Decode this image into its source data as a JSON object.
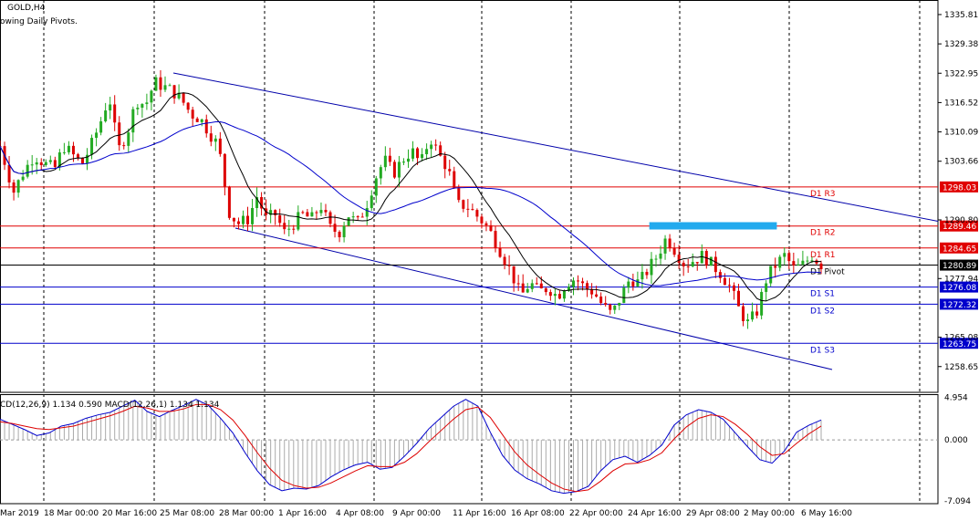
{
  "window": {
    "symbol_title": "GOLD,H4",
    "indicator_note": "owing Daily Pivots.",
    "macd_label": "CD(12,26,9) 1.134 0.590 MACD(12,26,1) 1.134 1.134"
  },
  "colors": {
    "resistance": "#e00000",
    "support": "#0000cc",
    "pivot": "#000000",
    "bull": "#22aa22",
    "bear": "#dd0000",
    "ma_fast": "#000000",
    "ma_slow": "#0000cc",
    "channel": "#0000aa",
    "highlight": "#22aaee",
    "macd_main": "#0000cc",
    "macd_signal": "#dd0000",
    "histogram": "#aaaaaa"
  },
  "chart_data": [
    {
      "type": "candlestick",
      "symbol": "GOLD",
      "timeframe": "H4",
      "ylim": [
        1253.0,
        1339.0
      ],
      "price_ticks": [
        "1335.81",
        "1329.38",
        "1322.95",
        "1316.52",
        "1310.09",
        "1303.66",
        "1290.80",
        "1277.94",
        "1265.08",
        "1258.65"
      ],
      "time_labels": [
        "Mar 2019",
        "18 Mar 00:00",
        "20 Mar 16:00",
        "25 Mar 08:00",
        "28 Mar 00:00",
        "1 Apr 16:00",
        "4 Apr 08:00",
        "9 Apr 00:00",
        "11 Apr 16:00",
        "16 Apr 08:00",
        "22 Apr 00:00",
        "24 Apr 16:00",
        "29 Apr 08:00",
        "2 May 00:00",
        "6 May 16:00"
      ],
      "levels": [
        {
          "name": "D1 R3",
          "value": 1298.03,
          "kind": "resistance",
          "tag": "1298.03"
        },
        {
          "name": "D1 R2",
          "value": 1289.46,
          "kind": "resistance",
          "tag": "1289.46"
        },
        {
          "name": "D1 R1",
          "value": 1284.65,
          "kind": "resistance",
          "tag": "1284.65"
        },
        {
          "name": "D1 Pivot",
          "value": 1280.89,
          "kind": "pivot",
          "tag": "1280.89"
        },
        {
          "name": "D1 S1",
          "value": 1276.08,
          "kind": "support",
          "tag": "1276.08"
        },
        {
          "name": "D1 S2",
          "value": 1272.32,
          "kind": "support",
          "tag": "1272.32"
        },
        {
          "name": "D1 S3",
          "value": 1263.75,
          "kind": "support",
          "tag": "1263.75"
        }
      ],
      "close_path": [
        [
          1307,
          0
        ],
        [
          1302,
          6
        ],
        [
          1297,
          12
        ],
        [
          1301,
          20
        ],
        [
          1305,
          30
        ],
        [
          1303,
          40
        ],
        [
          1302,
          48
        ],
        [
          1307,
          56
        ],
        [
          1305,
          64
        ],
        [
          1303,
          72
        ],
        [
          1307,
          80
        ],
        [
          1312,
          88
        ],
        [
          1318,
          96
        ],
        [
          1306,
          104
        ],
        [
          1310,
          112
        ],
        [
          1317,
          120
        ],
        [
          1316,
          128
        ],
        [
          1321,
          136
        ],
        [
          1320,
          144
        ],
        [
          1319,
          152
        ],
        [
          1317,
          160
        ],
        [
          1314,
          168
        ],
        [
          1313,
          176
        ],
        [
          1310,
          184
        ],
        [
          1307,
          192
        ],
        [
          1292,
          202
        ],
        [
          1290,
          210
        ],
        [
          1291,
          218
        ],
        [
          1296,
          226
        ],
        [
          1291,
          234
        ],
        [
          1292,
          242
        ],
        [
          1288,
          250
        ],
        [
          1290,
          258
        ],
        [
          1292,
          266
        ],
        [
          1291,
          274
        ],
        [
          1294,
          282
        ],
        [
          1289,
          290
        ],
        [
          1288,
          298
        ],
        [
          1292,
          306
        ],
        [
          1290,
          314
        ],
        [
          1294,
          322
        ],
        [
          1300,
          330
        ],
        [
          1304,
          338
        ],
        [
          1301,
          346
        ],
        [
          1304,
          354
        ],
        [
          1306,
          362
        ],
        [
          1303,
          370
        ],
        [
          1309,
          378
        ],
        [
          1305,
          386
        ],
        [
          1302,
          394
        ],
        [
          1294,
          402
        ],
        [
          1294,
          410
        ],
        [
          1292,
          418
        ],
        [
          1290,
          426
        ],
        [
          1287,
          434
        ],
        [
          1283,
          442
        ],
        [
          1279,
          450
        ],
        [
          1274,
          458
        ],
        [
          1277,
          466
        ],
        [
          1275,
          474
        ],
        [
          1276,
          482
        ],
        [
          1274,
          490
        ],
        [
          1277,
          498
        ],
        [
          1278,
          506
        ],
        [
          1276,
          514
        ],
        [
          1275,
          522
        ],
        [
          1272,
          530
        ],
        [
          1270,
          538
        ],
        [
          1274,
          546
        ],
        [
          1278,
          554
        ],
        [
          1277,
          562
        ],
        [
          1280,
          570
        ],
        [
          1283,
          578
        ],
        [
          1287,
          586
        ],
        [
          1284,
          594
        ],
        [
          1281,
          602
        ],
        [
          1282,
          610
        ],
        [
          1283,
          618
        ],
        [
          1281,
          626
        ],
        [
          1279,
          634
        ],
        [
          1276,
          642
        ],
        [
          1271,
          650
        ],
        [
          1268,
          658
        ],
        [
          1271,
          666
        ],
        [
          1278,
          674
        ],
        [
          1281,
          682
        ],
        [
          1283,
          690
        ],
        [
          1280,
          698
        ],
        [
          1281,
          706
        ],
        [
          1283,
          714
        ],
        [
          1281,
          722
        ]
      ],
      "candle_count": 180,
      "overlays": [
        {
          "name": "moving average (fast)",
          "color": "#000000"
        },
        {
          "name": "moving average (slow)",
          "color": "#0000cc"
        }
      ],
      "channel": {
        "upper": [
          [
            1323.0,
            0.0
          ],
          [
            1290.5,
            1.0
          ]
        ],
        "lower": [
          [
            1289.0,
            0.0
          ],
          [
            1258.0,
            1.0
          ]
        ]
      },
      "highlight_band": {
        "value": 1289.5,
        "x_range": [
          0.595,
          0.765
        ]
      }
    },
    {
      "type": "line",
      "name": "MACD(12,26,9)",
      "ylim": [
        -7.4,
        5.3
      ],
      "value_ticks": [
        "4.954",
        "0.000",
        "-7.094"
      ],
      "series": [
        {
          "name": "MACD",
          "values": [
            2.4,
            1.8,
            1.2,
            0.5,
            0.8,
            1.6,
            1.9,
            2.5,
            2.9,
            3.2,
            3.9,
            4.6,
            3.3,
            2.7,
            3.4,
            4.0,
            4.7,
            4.0,
            2.5,
            0.8,
            -1.5,
            -3.6,
            -5.2,
            -5.9,
            -5.6,
            -5.7,
            -5.3,
            -4.3,
            -3.5,
            -2.9,
            -2.6,
            -3.4,
            -3.2,
            -1.9,
            -0.4,
            1.3,
            2.6,
            3.9,
            4.7,
            3.9,
            0.9,
            -1.8,
            -3.5,
            -4.5,
            -5.1,
            -5.9,
            -6.2,
            -6.0,
            -5.4,
            -3.6,
            -2.3,
            -1.9,
            -2.6,
            -1.8,
            -0.6,
            1.7,
            2.9,
            3.5,
            3.2,
            2.4,
            0.8,
            -0.8,
            -2.3,
            -2.7,
            -1.3,
            0.9,
            1.7,
            2.3
          ]
        },
        {
          "name": "Signal",
          "values": [
            2.1,
            1.9,
            1.6,
            1.3,
            1.2,
            1.4,
            1.6,
            2.0,
            2.4,
            2.8,
            3.3,
            3.9,
            3.7,
            3.3,
            3.3,
            3.6,
            4.1,
            4.1,
            3.5,
            2.3,
            0.5,
            -1.5,
            -3.3,
            -4.7,
            -5.3,
            -5.6,
            -5.5,
            -5.0,
            -4.3,
            -3.6,
            -3.0,
            -3.1,
            -3.1,
            -2.6,
            -1.6,
            -0.2,
            1.1,
            2.4,
            3.5,
            3.8,
            2.6,
            0.6,
            -1.4,
            -2.9,
            -4.0,
            -5.0,
            -5.7,
            -6.0,
            -5.8,
            -4.8,
            -3.6,
            -2.8,
            -2.7,
            -2.3,
            -1.5,
            0.1,
            1.5,
            2.5,
            2.9,
            2.7,
            1.8,
            0.6,
            -0.8,
            -1.8,
            -1.6,
            -0.4,
            0.7,
            1.6
          ]
        }
      ]
    }
  ]
}
